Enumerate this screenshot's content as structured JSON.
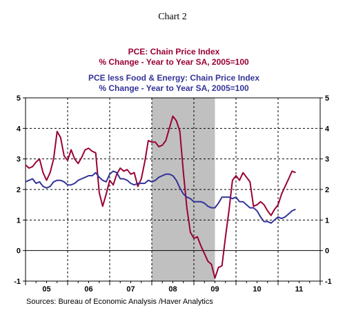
{
  "chart_data": {
    "type": "line",
    "title": "Chart 2",
    "legend": [
      {
        "line1": "PCE: Chain Price Index",
        "line2": "% Change - Year to Year   SA, 2005=100",
        "color": "#990033"
      },
      {
        "line1": "PCE less Food & Energy: Chain Price Index",
        "line2": "% Change - Year to Year   SA, 2005=100",
        "color": "#333399"
      }
    ],
    "x_ticks": [
      "05",
      "06",
      "07",
      "08",
      "09",
      "10",
      "11"
    ],
    "x_range": [
      2005.0,
      2012.0
    ],
    "ylim": [
      -1,
      5
    ],
    "y_ticks": [
      "-1",
      "0",
      "1",
      "2",
      "3",
      "4",
      "5"
    ],
    "recession_band": [
      2008.0,
      2009.5
    ],
    "grid": "dashed, both axes",
    "source": "Sources:  Bureau of Economic Analysis /Haver Analytics",
    "series": [
      {
        "name": "PCE: Chain Price Index",
        "color": "#990033",
        "x": [
          2005.0,
          2005.083,
          2005.167,
          2005.25,
          2005.333,
          2005.417,
          2005.5,
          2005.583,
          2005.667,
          2005.75,
          2005.833,
          2005.917,
          2006.0,
          2006.083,
          2006.167,
          2006.25,
          2006.333,
          2006.417,
          2006.5,
          2006.583,
          2006.667,
          2006.75,
          2006.833,
          2006.917,
          2007.0,
          2007.083,
          2007.167,
          2007.25,
          2007.333,
          2007.417,
          2007.5,
          2007.583,
          2007.667,
          2007.75,
          2007.833,
          2007.917,
          2008.0,
          2008.083,
          2008.167,
          2008.25,
          2008.333,
          2008.417,
          2008.5,
          2008.583,
          2008.667,
          2008.75,
          2008.833,
          2008.917,
          2009.0,
          2009.083,
          2009.167,
          2009.25,
          2009.333,
          2009.417,
          2009.5,
          2009.583,
          2009.667,
          2009.75,
          2009.833,
          2009.917,
          2010.0,
          2010.083,
          2010.167,
          2010.25,
          2010.333,
          2010.417,
          2010.5,
          2010.583,
          2010.667,
          2010.75,
          2010.833,
          2010.917,
          2011.0,
          2011.083,
          2011.167,
          2011.25,
          2011.333,
          2011.417
        ],
        "values": [
          2.8,
          2.7,
          2.75,
          2.9,
          3.0,
          2.55,
          2.3,
          2.55,
          3.0,
          3.9,
          3.7,
          3.1,
          2.95,
          3.3,
          3.0,
          2.85,
          3.05,
          3.3,
          3.35,
          3.25,
          3.2,
          1.9,
          1.45,
          1.85,
          2.3,
          2.15,
          2.5,
          2.7,
          2.6,
          2.65,
          2.5,
          2.55,
          2.1,
          2.35,
          2.9,
          3.6,
          3.55,
          3.55,
          3.4,
          3.45,
          3.6,
          4.0,
          4.4,
          4.25,
          3.9,
          2.55,
          1.4,
          0.6,
          0.4,
          0.45,
          0.15,
          -0.1,
          -0.35,
          -0.45,
          -0.9,
          -0.55,
          -0.5,
          0.45,
          1.3,
          2.3,
          2.45,
          2.3,
          2.55,
          2.4,
          2.25,
          1.45,
          1.5,
          1.6,
          1.5,
          1.3,
          1.15,
          1.35,
          1.5,
          1.85,
          2.1,
          2.35,
          2.6,
          2.55
        ]
      },
      {
        "name": "PCE less Food & Energy: Chain Price Index",
        "color": "#333399",
        "x": [
          2005.0,
          2005.083,
          2005.167,
          2005.25,
          2005.333,
          2005.417,
          2005.5,
          2005.583,
          2005.667,
          2005.75,
          2005.833,
          2005.917,
          2006.0,
          2006.083,
          2006.167,
          2006.25,
          2006.333,
          2006.417,
          2006.5,
          2006.583,
          2006.667,
          2006.75,
          2006.833,
          2006.917,
          2007.0,
          2007.083,
          2007.167,
          2007.25,
          2007.333,
          2007.417,
          2007.5,
          2007.583,
          2007.667,
          2007.75,
          2007.833,
          2007.917,
          2008.0,
          2008.083,
          2008.167,
          2008.25,
          2008.333,
          2008.417,
          2008.5,
          2008.583,
          2008.667,
          2008.75,
          2008.833,
          2008.917,
          2009.0,
          2009.083,
          2009.167,
          2009.25,
          2009.333,
          2009.417,
          2009.5,
          2009.583,
          2009.667,
          2009.75,
          2009.833,
          2009.917,
          2010.0,
          2010.083,
          2010.167,
          2010.25,
          2010.333,
          2010.417,
          2010.5,
          2010.583,
          2010.667,
          2010.75,
          2010.833,
          2010.917,
          2011.0,
          2011.083,
          2011.167,
          2011.25,
          2011.333,
          2011.417
        ],
        "values": [
          2.25,
          2.3,
          2.35,
          2.2,
          2.25,
          2.1,
          2.05,
          2.1,
          2.25,
          2.3,
          2.3,
          2.25,
          2.15,
          2.15,
          2.2,
          2.3,
          2.35,
          2.4,
          2.45,
          2.45,
          2.55,
          2.4,
          2.3,
          2.25,
          2.5,
          2.6,
          2.55,
          2.35,
          2.35,
          2.3,
          2.2,
          2.15,
          2.2,
          2.2,
          2.2,
          2.3,
          2.25,
          2.3,
          2.4,
          2.45,
          2.5,
          2.5,
          2.45,
          2.3,
          2.05,
          1.85,
          1.75,
          1.7,
          1.6,
          1.6,
          1.6,
          1.55,
          1.45,
          1.4,
          1.4,
          1.55,
          1.75,
          1.75,
          1.75,
          1.7,
          1.75,
          1.6,
          1.6,
          1.5,
          1.4,
          1.4,
          1.3,
          1.1,
          0.95,
          0.95,
          0.9,
          1.0,
          1.1,
          1.05,
          1.1,
          1.2,
          1.3,
          1.35
        ]
      }
    ]
  }
}
